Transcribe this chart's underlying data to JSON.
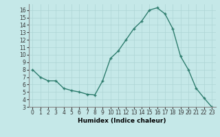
{
  "x": [
    0,
    1,
    2,
    3,
    4,
    5,
    6,
    7,
    8,
    9,
    10,
    11,
    12,
    13,
    14,
    15,
    16,
    17,
    18,
    19,
    20,
    21,
    22,
    23
  ],
  "y": [
    8,
    7,
    6.5,
    6.5,
    5.5,
    5.2,
    5.0,
    4.7,
    4.6,
    6.5,
    9.5,
    10.5,
    12.0,
    13.5,
    14.5,
    16.0,
    16.3,
    15.5,
    13.5,
    9.8,
    8.0,
    5.5,
    4.2,
    3.0
  ],
  "line_color": "#2e7d6e",
  "marker": "+",
  "marker_size": 3,
  "marker_lw": 1.0,
  "line_width": 1.0,
  "bg_color": "#c5e8e8",
  "grid_color": "#aed4d4",
  "xlabel": "Humidex (Indice chaleur)",
  "xlim": [
    -0.5,
    23.5
  ],
  "ylim": [
    3,
    16.8
  ],
  "yticks": [
    3,
    4,
    5,
    6,
    7,
    8,
    9,
    10,
    11,
    12,
    13,
    14,
    15,
    16
  ],
  "xticks": [
    0,
    1,
    2,
    3,
    4,
    5,
    6,
    7,
    8,
    9,
    10,
    11,
    12,
    13,
    14,
    15,
    16,
    17,
    18,
    19,
    20,
    21,
    22,
    23
  ],
  "tick_fontsize": 5.5,
  "xlabel_fontsize": 6.5
}
